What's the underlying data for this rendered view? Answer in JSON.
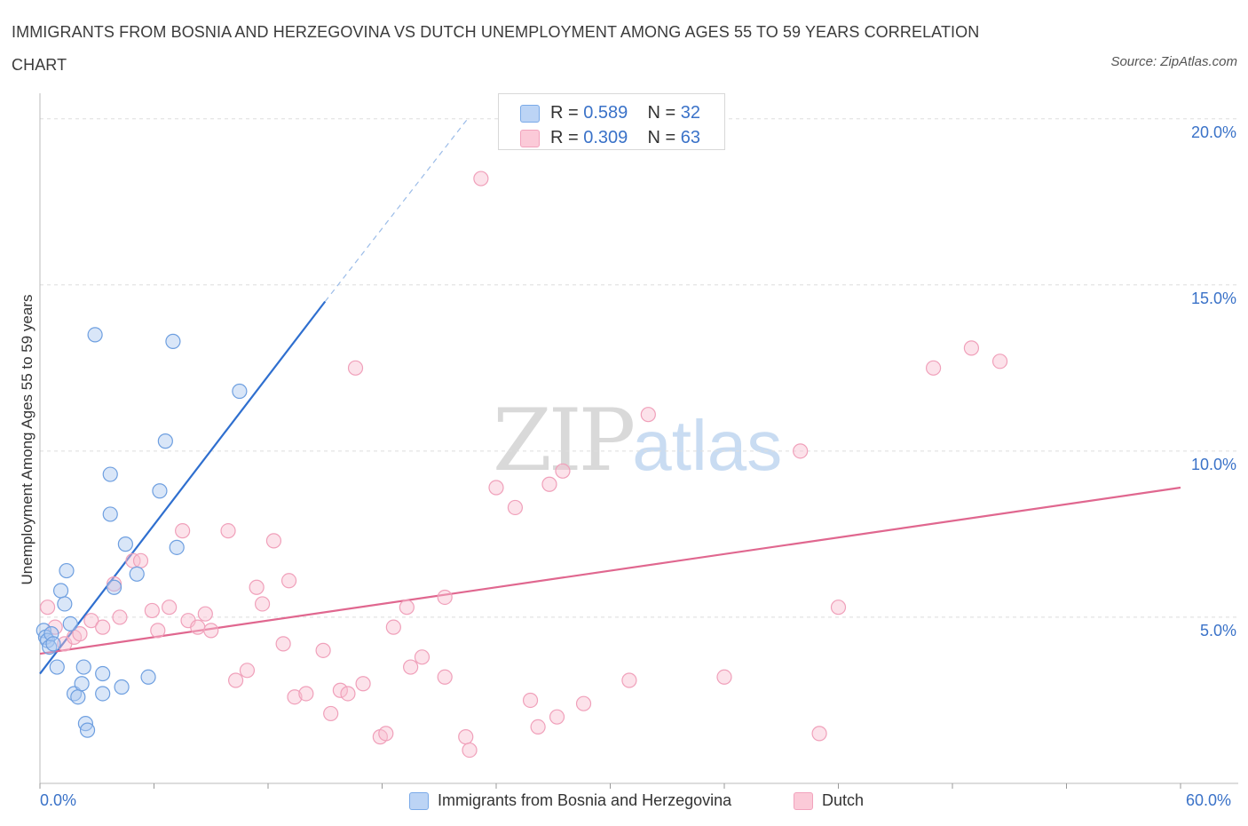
{
  "title": "IMMIGRANTS FROM BOSNIA AND HERZEGOVINA VS DUTCH UNEMPLOYMENT AMONG AGES 55 TO 59 YEARS CORRELATION CHART",
  "source": "Source: ZipAtlas.com",
  "watermark": {
    "zip": "ZIP",
    "atlas": "atlas"
  },
  "legend_top": {
    "rows": [
      {
        "r_label": "R = ",
        "r_value": "0.589",
        "n_label": "N = ",
        "n_value": "32"
      },
      {
        "r_label": "R = ",
        "r_value": "0.309",
        "n_label": "N = ",
        "n_value": "63"
      }
    ]
  },
  "chart_data": {
    "type": "scatter",
    "title": "IMMIGRANTS FROM BOSNIA AND HERZEGOVINA VS DUTCH UNEMPLOYMENT AMONG AGES 55 TO 59 YEARS CORRELATION CHART",
    "xlabel": "",
    "ylabel": "Unemployment Among Ages 55 to 59 years",
    "xlim": [
      0,
      60
    ],
    "ylim": [
      0,
      20.5
    ],
    "x_tick_labels": [
      "0.0%",
      "60.0%"
    ],
    "y_ticks": [
      5,
      10,
      15,
      20
    ],
    "y_tick_labels": [
      "5.0%",
      "10.0%",
      "15.0%",
      "20.0%"
    ],
    "grid": true,
    "legend_position": "bottom",
    "colors": {
      "bosnia": "#7aaae8",
      "dutch": "#f2a3bd",
      "bosnia_line": "#2f6fcf",
      "dutch_line": "#e0678f",
      "tick": "#3a72c8"
    },
    "series": [
      {
        "name": "Immigrants from Bosnia and Herzegovina",
        "trend": {
          "x": [
            0.0,
            15.0
          ],
          "y": [
            3.3,
            14.5
          ],
          "dashed_to": [
            22.5,
            20.0
          ]
        },
        "points": [
          [
            0.2,
            4.6
          ],
          [
            0.3,
            4.4
          ],
          [
            0.4,
            4.3
          ],
          [
            0.5,
            4.1
          ],
          [
            0.6,
            4.5
          ],
          [
            0.7,
            4.2
          ],
          [
            0.9,
            3.5
          ],
          [
            1.1,
            5.8
          ],
          [
            1.3,
            5.4
          ],
          [
            1.4,
            6.4
          ],
          [
            1.6,
            4.8
          ],
          [
            1.8,
            2.7
          ],
          [
            2.0,
            2.6
          ],
          [
            2.2,
            3.0
          ],
          [
            2.3,
            3.5
          ],
          [
            2.4,
            1.8
          ],
          [
            2.5,
            1.6
          ],
          [
            3.3,
            3.3
          ],
          [
            3.3,
            2.7
          ],
          [
            3.7,
            8.1
          ],
          [
            3.7,
            9.3
          ],
          [
            3.9,
            5.9
          ],
          [
            4.3,
            2.9
          ],
          [
            4.5,
            7.2
          ],
          [
            5.1,
            6.3
          ],
          [
            5.7,
            3.2
          ],
          [
            6.3,
            8.8
          ],
          [
            6.6,
            10.3
          ],
          [
            7.0,
            13.3
          ],
          [
            7.2,
            7.1
          ],
          [
            2.9,
            13.5
          ],
          [
            10.5,
            11.8
          ]
        ]
      },
      {
        "name": "Dutch",
        "trend": {
          "x": [
            0.0,
            60.0
          ],
          "y": [
            3.9,
            8.9
          ]
        },
        "points": [
          [
            0.4,
            5.3
          ],
          [
            0.8,
            4.7
          ],
          [
            1.3,
            4.2
          ],
          [
            1.8,
            4.4
          ],
          [
            2.1,
            4.5
          ],
          [
            2.7,
            4.9
          ],
          [
            3.3,
            4.7
          ],
          [
            3.9,
            6.0
          ],
          [
            4.2,
            5.0
          ],
          [
            4.9,
            6.7
          ],
          [
            5.3,
            6.7
          ],
          [
            5.9,
            5.2
          ],
          [
            6.2,
            4.6
          ],
          [
            6.8,
            5.3
          ],
          [
            7.5,
            7.6
          ],
          [
            7.8,
            4.9
          ],
          [
            8.3,
            4.7
          ],
          [
            8.7,
            5.1
          ],
          [
            9.0,
            4.6
          ],
          [
            9.9,
            7.6
          ],
          [
            10.3,
            3.1
          ],
          [
            10.9,
            3.4
          ],
          [
            11.4,
            5.9
          ],
          [
            11.7,
            5.4
          ],
          [
            12.3,
            7.3
          ],
          [
            12.8,
            4.2
          ],
          [
            13.1,
            6.1
          ],
          [
            13.4,
            2.6
          ],
          [
            14.0,
            2.7
          ],
          [
            14.9,
            4.0
          ],
          [
            15.3,
            2.1
          ],
          [
            15.8,
            2.8
          ],
          [
            16.2,
            2.7
          ],
          [
            16.6,
            12.5
          ],
          [
            17.0,
            3.0
          ],
          [
            17.9,
            1.4
          ],
          [
            18.2,
            1.5
          ],
          [
            18.6,
            4.7
          ],
          [
            19.3,
            5.3
          ],
          [
            19.5,
            3.5
          ],
          [
            20.1,
            3.8
          ],
          [
            21.3,
            3.2
          ],
          [
            21.3,
            5.6
          ],
          [
            22.4,
            1.4
          ],
          [
            22.6,
            1.0
          ],
          [
            23.2,
            18.2
          ],
          [
            24.0,
            8.9
          ],
          [
            25.0,
            8.3
          ],
          [
            25.8,
            2.5
          ],
          [
            26.2,
            1.7
          ],
          [
            26.8,
            9.0
          ],
          [
            27.2,
            2.0
          ],
          [
            27.5,
            9.4
          ],
          [
            28.6,
            2.4
          ],
          [
            31.0,
            3.1
          ],
          [
            32.0,
            11.1
          ],
          [
            36.0,
            3.2
          ],
          [
            40.0,
            10.0
          ],
          [
            41.0,
            1.5
          ],
          [
            42.0,
            5.3
          ],
          [
            47.0,
            12.5
          ],
          [
            49.0,
            13.1
          ],
          [
            50.5,
            12.7
          ]
        ]
      }
    ]
  },
  "legend_bottom": [
    {
      "label": "Immigrants from Bosnia and Herzegovina"
    },
    {
      "label": "Dutch"
    }
  ]
}
